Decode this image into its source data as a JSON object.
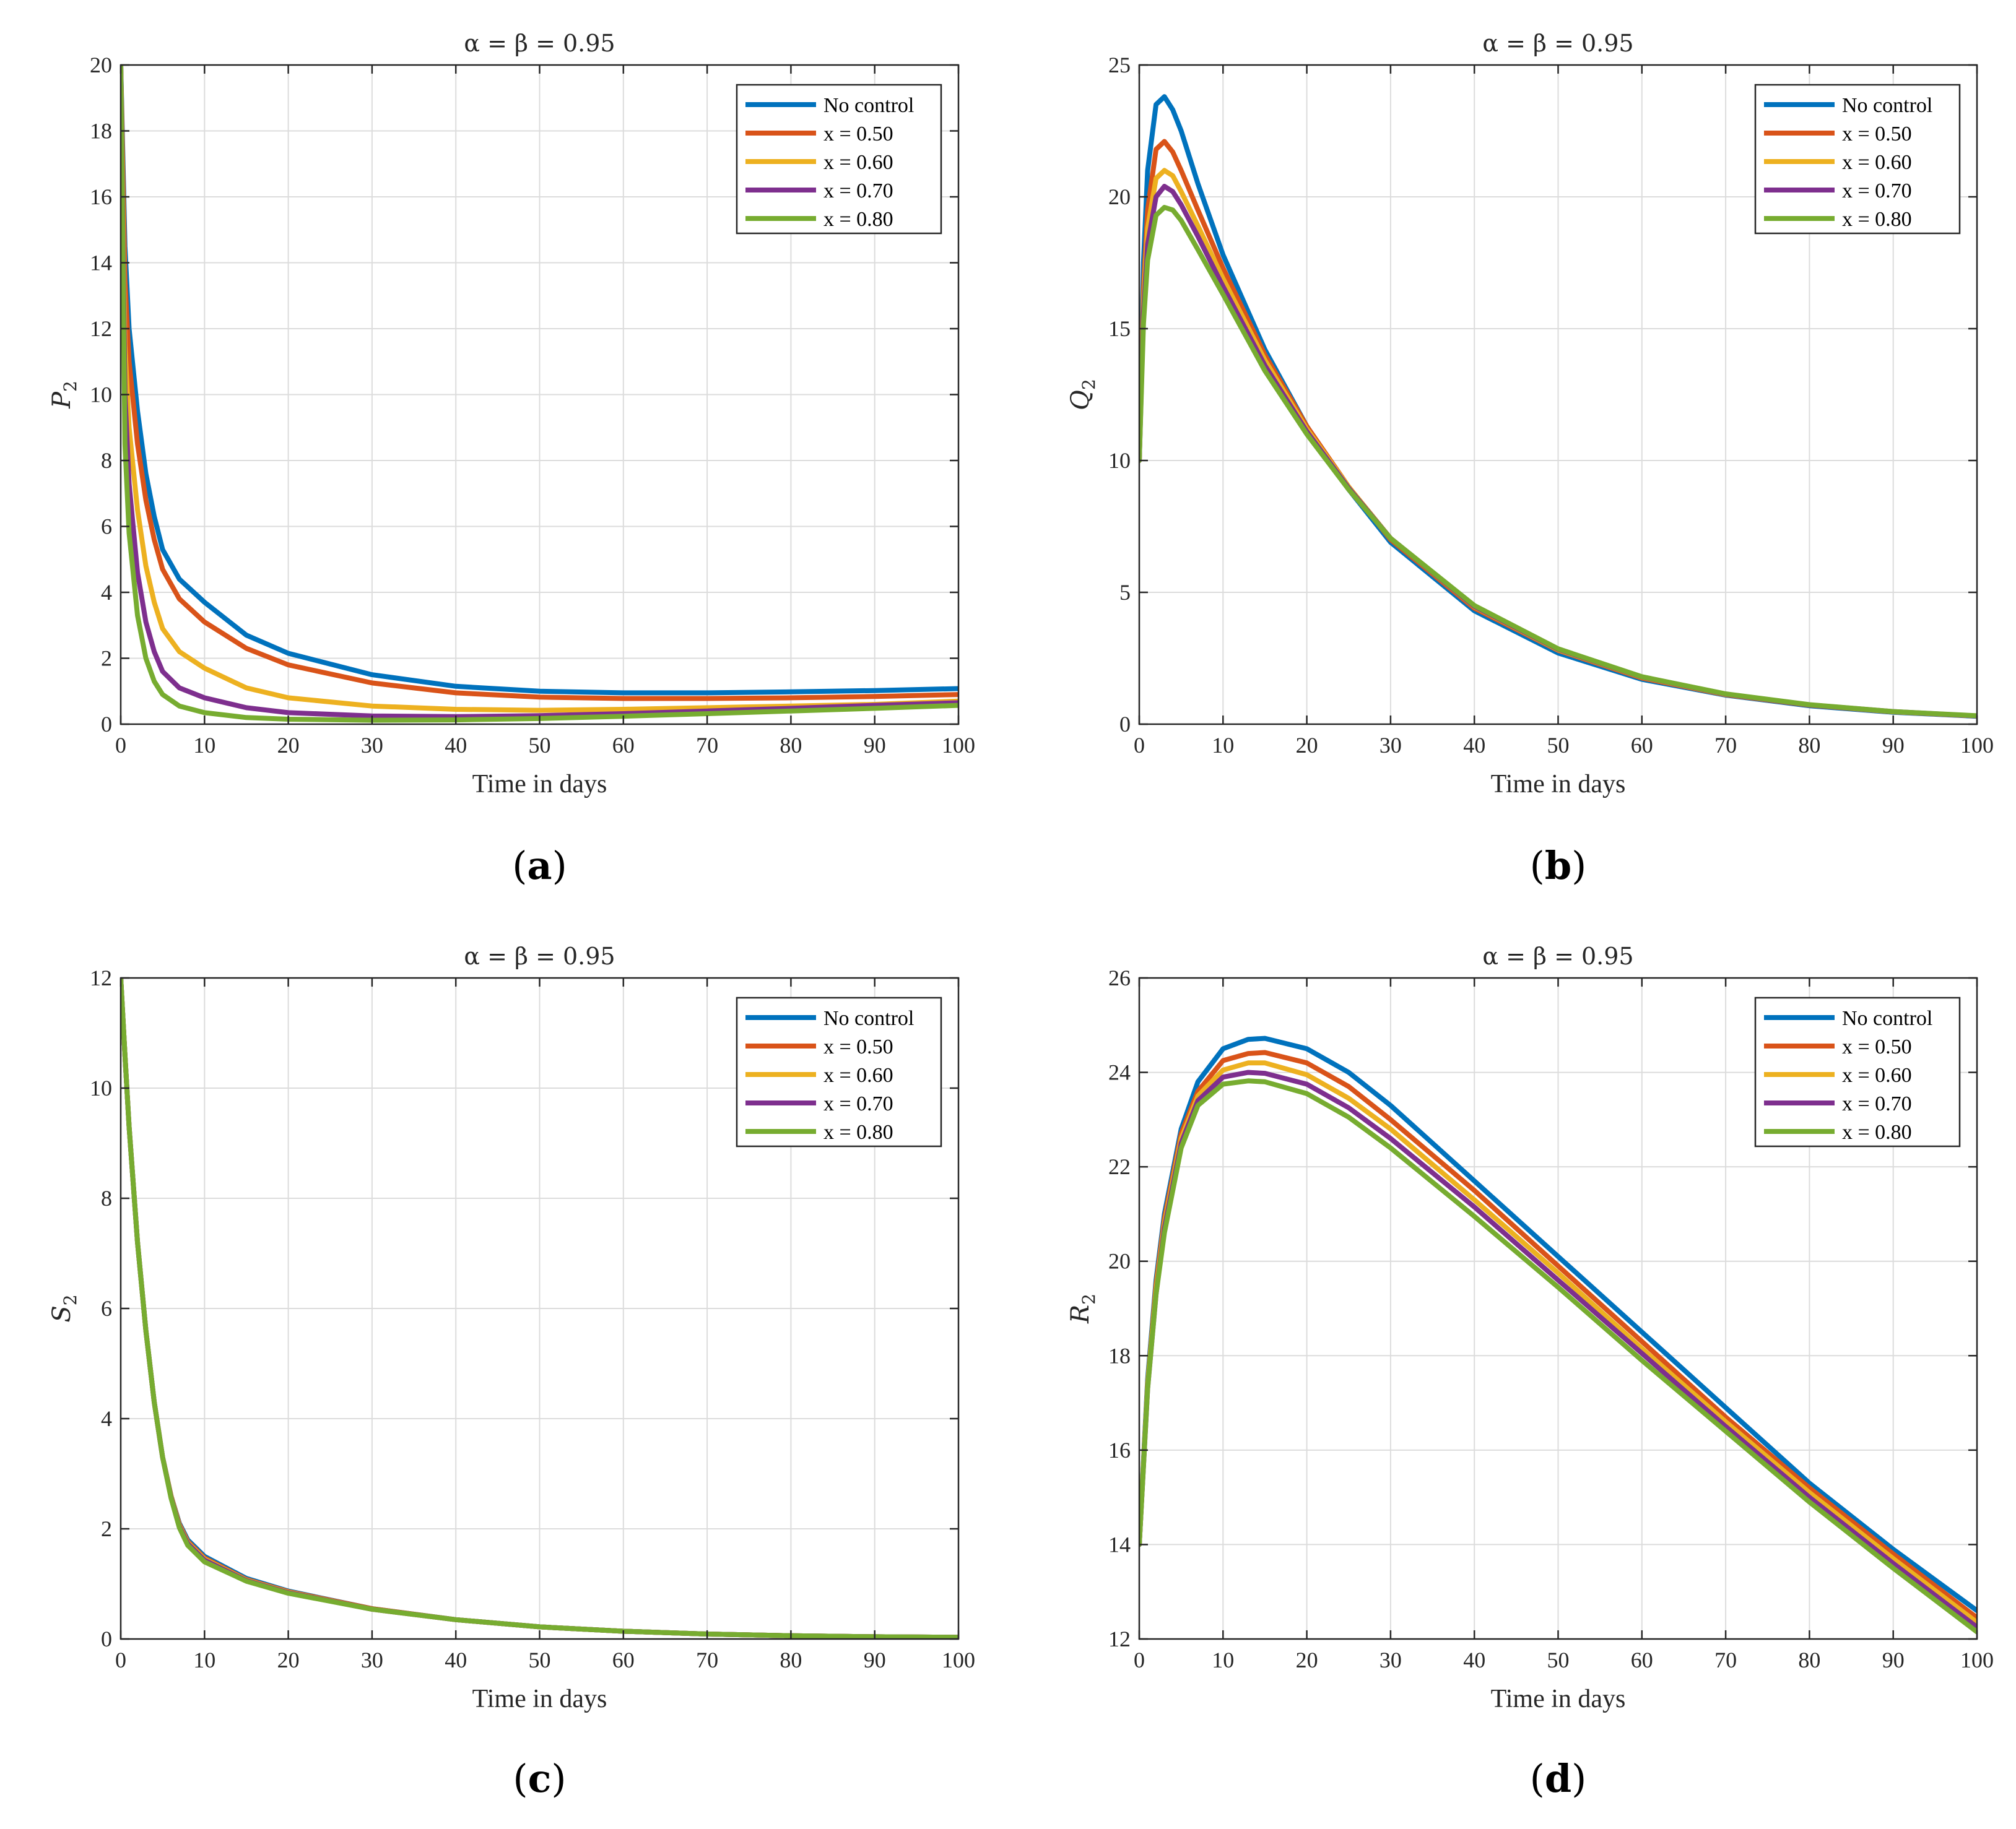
{
  "chart_data": [
    {
      "type": "line",
      "panel": "(a)",
      "title": "α = β = 0.95",
      "xlabel": "Time in days",
      "ylabel": "P2",
      "ylabel_main": "P",
      "ylabel_sub": "2",
      "xlim": [
        0,
        100
      ],
      "ylim": [
        0,
        20
      ],
      "xticks": [
        0,
        10,
        20,
        30,
        40,
        50,
        60,
        70,
        80,
        90,
        100
      ],
      "yticks": [
        0,
        2,
        4,
        6,
        8,
        10,
        12,
        14,
        16,
        18,
        20
      ],
      "legend": {
        "position": "top-right"
      },
      "x": [
        0,
        0.5,
        1,
        2,
        3,
        4,
        5,
        7,
        10,
        15,
        20,
        30,
        40,
        50,
        60,
        70,
        80,
        90,
        100
      ],
      "series": [
        {
          "name": "No control",
          "color": "#0072BD",
          "values": [
            20,
            14.5,
            12,
            9.5,
            7.6,
            6.3,
            5.3,
            4.4,
            3.7,
            2.7,
            2.15,
            1.5,
            1.15,
            1.0,
            0.95,
            0.95,
            0.98,
            1.02,
            1.08
          ]
        },
        {
          "name": "x = 0.50",
          "color": "#D95319",
          "values": [
            20,
            13.5,
            11,
            8.5,
            6.8,
            5.6,
            4.7,
            3.8,
            3.1,
            2.3,
            1.8,
            1.25,
            0.95,
            0.82,
            0.78,
            0.78,
            0.8,
            0.84,
            0.9
          ]
        },
        {
          "name": "x = 0.60",
          "color": "#EDB120",
          "values": [
            20,
            11.5,
            9,
            6.5,
            4.8,
            3.7,
            2.9,
            2.2,
            1.7,
            1.1,
            0.8,
            0.55,
            0.45,
            0.42,
            0.45,
            0.5,
            0.55,
            0.6,
            0.7
          ]
        },
        {
          "name": "x = 0.70",
          "color": "#7E2F8E",
          "values": [
            20,
            10,
            7.3,
            4.6,
            3.1,
            2.2,
            1.6,
            1.1,
            0.8,
            0.5,
            0.35,
            0.25,
            0.23,
            0.26,
            0.32,
            0.4,
            0.48,
            0.57,
            0.65
          ]
        },
        {
          "name": "x = 0.80",
          "color": "#77AC30",
          "values": [
            20,
            8.5,
            5.8,
            3.3,
            2.0,
            1.3,
            0.9,
            0.55,
            0.35,
            0.2,
            0.15,
            0.12,
            0.13,
            0.17,
            0.24,
            0.32,
            0.4,
            0.48,
            0.57
          ]
        }
      ]
    },
    {
      "type": "line",
      "panel": "(b)",
      "title": "α = β = 0.95",
      "xlabel": "Time in days",
      "ylabel": "Q2",
      "ylabel_main": "Q",
      "ylabel_sub": "2",
      "xlim": [
        0,
        100
      ],
      "ylim": [
        0,
        25
      ],
      "xticks": [
        0,
        10,
        20,
        30,
        40,
        50,
        60,
        70,
        80,
        90,
        100
      ],
      "yticks": [
        0,
        5,
        10,
        15,
        20,
        25
      ],
      "legend": {
        "position": "top-right"
      },
      "x": [
        0,
        0.5,
        1,
        2,
        3,
        4,
        5,
        7,
        10,
        15,
        20,
        25,
        30,
        40,
        50,
        60,
        70,
        80,
        90,
        100
      ],
      "series": [
        {
          "name": "No control",
          "color": "#0072BD",
          "values": [
            10,
            17.5,
            21,
            23.5,
            23.8,
            23.3,
            22.5,
            20.5,
            17.8,
            14.2,
            11.3,
            8.9,
            6.9,
            4.3,
            2.7,
            1.7,
            1.1,
            0.7,
            0.45,
            0.3
          ]
        },
        {
          "name": "x = 0.50",
          "color": "#D95319",
          "values": [
            10,
            16.5,
            19.5,
            21.8,
            22.1,
            21.7,
            21.0,
            19.5,
            17.3,
            14.0,
            11.3,
            9.0,
            7.0,
            4.4,
            2.8,
            1.75,
            1.12,
            0.72,
            0.47,
            0.31
          ]
        },
        {
          "name": "x = 0.60",
          "color": "#EDB120",
          "values": [
            10,
            16,
            18.8,
            20.7,
            21.0,
            20.8,
            20.2,
            18.9,
            16.9,
            13.8,
            11.2,
            9.0,
            7.05,
            4.45,
            2.82,
            1.78,
            1.13,
            0.73,
            0.47,
            0.31
          ]
        },
        {
          "name": "x = 0.70",
          "color": "#7E2F8E",
          "values": [
            10,
            15.6,
            18.2,
            20.0,
            20.4,
            20.2,
            19.7,
            18.5,
            16.6,
            13.6,
            11.1,
            8.95,
            7.05,
            4.47,
            2.84,
            1.79,
            1.14,
            0.73,
            0.48,
            0.31
          ]
        },
        {
          "name": "x = 0.80",
          "color": "#77AC30",
          "values": [
            10,
            15.2,
            17.6,
            19.3,
            19.6,
            19.5,
            19.1,
            18.0,
            16.3,
            13.4,
            11.0,
            8.9,
            7.05,
            4.5,
            2.86,
            1.8,
            1.15,
            0.74,
            0.48,
            0.32
          ]
        }
      ]
    },
    {
      "type": "line",
      "panel": "(c)",
      "title": "α = β = 0.95",
      "xlabel": "Time in days",
      "ylabel": "S2",
      "ylabel_main": "S",
      "ylabel_sub": "2",
      "xlim": [
        0,
        100
      ],
      "ylim": [
        0,
        12
      ],
      "xticks": [
        0,
        10,
        20,
        30,
        40,
        50,
        60,
        70,
        80,
        90,
        100
      ],
      "yticks": [
        0,
        2,
        4,
        6,
        8,
        10,
        12
      ],
      "legend": {
        "position": "top-right"
      },
      "x": [
        0,
        0.5,
        1,
        2,
        3,
        4,
        5,
        6,
        7,
        8,
        10,
        15,
        20,
        30,
        40,
        50,
        60,
        70,
        80,
        90,
        100
      ],
      "series": [
        {
          "name": "No control",
          "color": "#0072BD",
          "values": [
            12,
            10.6,
            9.3,
            7.2,
            5.6,
            4.3,
            3.3,
            2.6,
            2.1,
            1.8,
            1.5,
            1.1,
            0.87,
            0.55,
            0.35,
            0.22,
            0.14,
            0.09,
            0.06,
            0.04,
            0.03
          ]
        },
        {
          "name": "x = 0.50",
          "color": "#D95319",
          "values": [
            12,
            10.6,
            9.3,
            7.2,
            5.6,
            4.3,
            3.3,
            2.6,
            2.08,
            1.77,
            1.47,
            1.08,
            0.86,
            0.55,
            0.35,
            0.22,
            0.14,
            0.09,
            0.06,
            0.04,
            0.03
          ]
        },
        {
          "name": "x = 0.60",
          "color": "#EDB120",
          "values": [
            12,
            10.6,
            9.3,
            7.2,
            5.6,
            4.3,
            3.3,
            2.6,
            2.06,
            1.75,
            1.45,
            1.07,
            0.85,
            0.54,
            0.35,
            0.22,
            0.14,
            0.09,
            0.06,
            0.04,
            0.03
          ]
        },
        {
          "name": "x = 0.70",
          "color": "#7E2F8E",
          "values": [
            12,
            10.6,
            9.3,
            7.2,
            5.6,
            4.3,
            3.3,
            2.58,
            2.04,
            1.73,
            1.43,
            1.06,
            0.84,
            0.54,
            0.35,
            0.22,
            0.14,
            0.09,
            0.06,
            0.04,
            0.03
          ]
        },
        {
          "name": "x = 0.80",
          "color": "#77AC30",
          "values": [
            12,
            10.6,
            9.3,
            7.2,
            5.6,
            4.3,
            3.3,
            2.56,
            2.02,
            1.7,
            1.4,
            1.05,
            0.83,
            0.54,
            0.35,
            0.22,
            0.14,
            0.09,
            0.06,
            0.04,
            0.03
          ]
        }
      ]
    },
    {
      "type": "line",
      "panel": "(d)",
      "title": "α = β = 0.95",
      "xlabel": "Time in days",
      "ylabel": "R2",
      "ylabel_main": "R",
      "ylabel_sub": "2",
      "xlim": [
        0,
        100
      ],
      "ylim": [
        12,
        26
      ],
      "xticks": [
        0,
        10,
        20,
        30,
        40,
        50,
        60,
        70,
        80,
        90,
        100
      ],
      "yticks": [
        12,
        14,
        16,
        18,
        20,
        22,
        24,
        26
      ],
      "legend": {
        "position": "top-right"
      },
      "x": [
        0,
        1,
        2,
        3,
        5,
        7,
        10,
        13,
        15,
        20,
        25,
        30,
        40,
        50,
        60,
        70,
        80,
        90,
        100
      ],
      "series": [
        {
          "name": "No control",
          "color": "#0072BD",
          "values": [
            14,
            17.5,
            19.6,
            21,
            22.8,
            23.8,
            24.5,
            24.7,
            24.72,
            24.5,
            24.0,
            23.3,
            21.7,
            20.1,
            18.5,
            16.9,
            15.3,
            13.9,
            12.6
          ]
        },
        {
          "name": "x = 0.50",
          "color": "#D95319",
          "values": [
            14,
            17.4,
            19.5,
            20.9,
            22.7,
            23.6,
            24.25,
            24.4,
            24.42,
            24.2,
            23.7,
            23.0,
            21.5,
            19.9,
            18.3,
            16.7,
            15.2,
            13.8,
            12.45
          ]
        },
        {
          "name": "x = 0.60",
          "color": "#EDB120",
          "values": [
            14,
            17.4,
            19.4,
            20.8,
            22.6,
            23.5,
            24.05,
            24.2,
            24.2,
            23.95,
            23.45,
            22.8,
            21.3,
            19.75,
            18.15,
            16.6,
            15.1,
            13.7,
            12.35
          ]
        },
        {
          "name": "x = 0.70",
          "color": "#7E2F8E",
          "values": [
            14,
            17.3,
            19.3,
            20.7,
            22.5,
            23.4,
            23.9,
            24.0,
            23.98,
            23.75,
            23.25,
            22.6,
            21.15,
            19.6,
            18.05,
            16.5,
            15.0,
            13.6,
            12.25
          ]
        },
        {
          "name": "x = 0.80",
          "color": "#77AC30",
          "values": [
            14,
            17.3,
            19.3,
            20.6,
            22.4,
            23.3,
            23.75,
            23.82,
            23.8,
            23.55,
            23.05,
            22.4,
            20.95,
            19.45,
            17.9,
            16.4,
            14.9,
            13.5,
            12.15
          ]
        }
      ]
    }
  ]
}
